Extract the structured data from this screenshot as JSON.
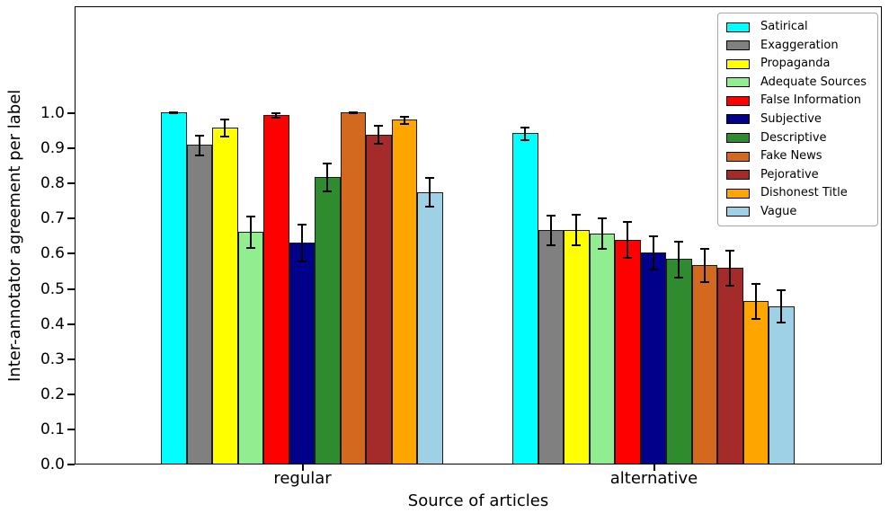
{
  "chart_data": {
    "type": "bar",
    "title": "",
    "xlabel": "Source of articles",
    "ylabel": "Inter-annotator agreement per label",
    "categories": [
      "regular",
      "alternative"
    ],
    "ylim": [
      0,
      1.3
    ],
    "ytick_labels": [
      "0.0",
      "0.1",
      "0.2",
      "0.3",
      "0.4",
      "0.5",
      "0.6",
      "0.7",
      "0.8",
      "0.9",
      "1.0"
    ],
    "grid": false,
    "error_bars": true,
    "legend_position": "upper right",
    "bar_edge_color": "#000000",
    "series": [
      {
        "name": "Satirical",
        "color": "#00FFFF",
        "values": [
          1.0,
          0.94
        ],
        "errors": [
          0.004,
          0.021
        ]
      },
      {
        "name": "Exaggeration",
        "color": "#808080",
        "values": [
          0.907,
          0.665
        ],
        "errors": [
          0.031,
          0.044
        ]
      },
      {
        "name": "Propaganda",
        "color": "#FFFF00",
        "values": [
          0.956,
          0.665
        ],
        "errors": [
          0.027,
          0.046
        ]
      },
      {
        "name": "Adequate Sources",
        "color": "#90EE90",
        "values": [
          0.659,
          0.656
        ],
        "errors": [
          0.048,
          0.047
        ]
      },
      {
        "name": "False Information",
        "color": "#FF0000",
        "values": [
          0.992,
          0.638
        ],
        "errors": [
          0.009,
          0.053
        ]
      },
      {
        "name": "Subjective",
        "color": "#00008B",
        "values": [
          0.628,
          0.601
        ],
        "errors": [
          0.055,
          0.049
        ]
      },
      {
        "name": "Descriptive",
        "color": "#2E8B2E",
        "values": [
          0.815,
          0.582
        ],
        "errors": [
          0.042,
          0.053
        ]
      },
      {
        "name": "Fake News",
        "color": "#D2691E",
        "values": [
          0.999,
          0.565
        ],
        "errors": [
          0.004,
          0.049
        ]
      },
      {
        "name": "Pejorative",
        "color": "#A52A2A",
        "values": [
          0.936,
          0.558
        ],
        "errors": [
          0.028,
          0.052
        ]
      },
      {
        "name": "Dishonest Title",
        "color": "#FFA500",
        "values": [
          0.979,
          0.462
        ],
        "errors": [
          0.013,
          0.053
        ]
      },
      {
        "name": "Vague",
        "color": "#9ED0E6",
        "values": [
          0.773,
          0.448
        ],
        "errors": [
          0.043,
          0.049
        ]
      }
    ]
  }
}
